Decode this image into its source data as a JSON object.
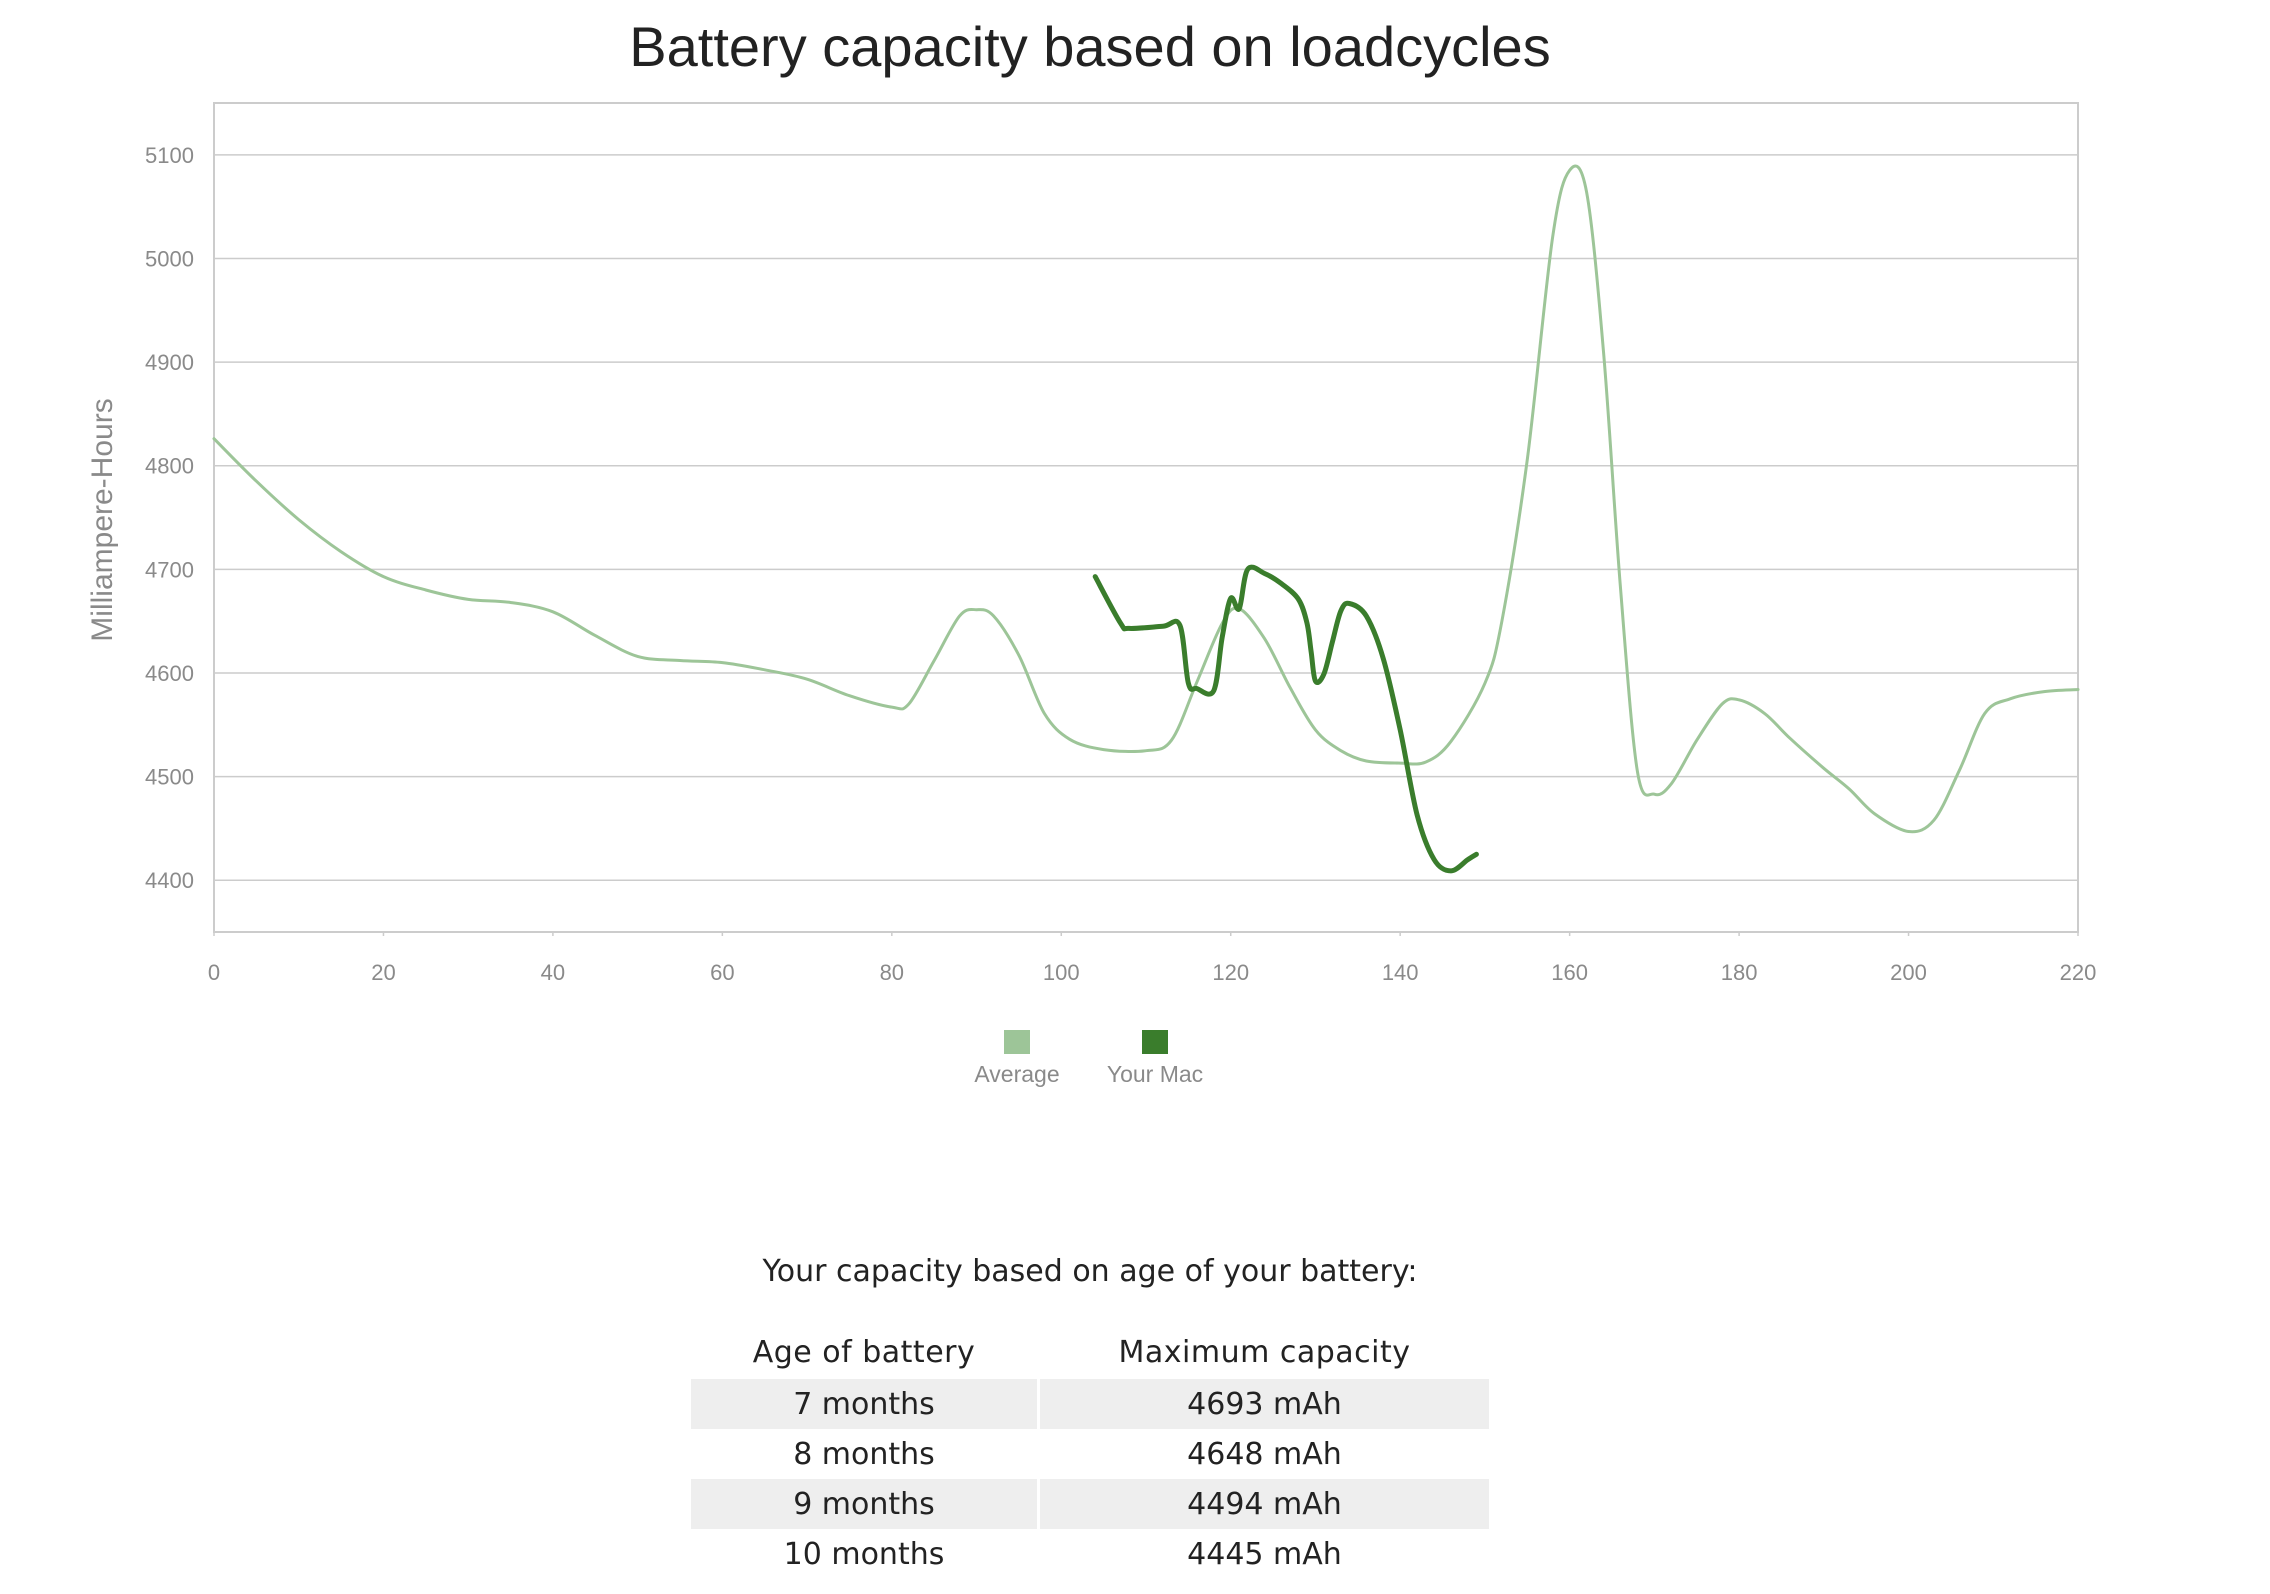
{
  "chart_data": {
    "type": "line",
    "title": "Battery capacity based on loadcycles",
    "ylabel": "Milliampere-Hours",
    "xlabel": "",
    "xlim": [
      0,
      220
    ],
    "ylim": [
      4350,
      5150
    ],
    "x_ticks": [
      0,
      20,
      40,
      60,
      80,
      100,
      120,
      140,
      160,
      180,
      200,
      220
    ],
    "y_ticks": [
      4400,
      4500,
      4600,
      4700,
      4800,
      4900,
      5000,
      5100
    ],
    "grid": true,
    "legend_position": "bottom",
    "series": [
      {
        "name": "Average",
        "color": "#9dc598",
        "points": [
          [
            0,
            4826
          ],
          [
            5,
            4785
          ],
          [
            10,
            4748
          ],
          [
            15,
            4717
          ],
          [
            20,
            4693
          ],
          [
            25,
            4680
          ],
          [
            30,
            4671
          ],
          [
            35,
            4668
          ],
          [
            40,
            4659
          ],
          [
            45,
            4636
          ],
          [
            50,
            4616
          ],
          [
            55,
            4612
          ],
          [
            60,
            4610
          ],
          [
            65,
            4603
          ],
          [
            70,
            4594
          ],
          [
            75,
            4578
          ],
          [
            80,
            4567
          ],
          [
            82,
            4570
          ],
          [
            85,
            4612
          ],
          [
            88,
            4655
          ],
          [
            90,
            4661
          ],
          [
            92,
            4655
          ],
          [
            95,
            4617
          ],
          [
            98,
            4561
          ],
          [
            101,
            4536
          ],
          [
            105,
            4526
          ],
          [
            110,
            4525
          ],
          [
            113,
            4535
          ],
          [
            116,
            4591
          ],
          [
            119,
            4648
          ],
          [
            121,
            4662
          ],
          [
            124,
            4633
          ],
          [
            127,
            4586
          ],
          [
            130,
            4545
          ],
          [
            133,
            4525
          ],
          [
            136,
            4515
          ],
          [
            140,
            4513
          ],
          [
            143,
            4514
          ],
          [
            146,
            4534
          ],
          [
            150,
            4590
          ],
          [
            152,
            4650
          ],
          [
            155,
            4806
          ],
          [
            158,
            5021
          ],
          [
            160,
            5085
          ],
          [
            162,
            5064
          ],
          [
            164,
            4910
          ],
          [
            166,
            4682
          ],
          [
            168,
            4505
          ],
          [
            170,
            4483
          ],
          [
            172,
            4493
          ],
          [
            175,
            4535
          ],
          [
            178,
            4570
          ],
          [
            180,
            4574
          ],
          [
            183,
            4561
          ],
          [
            186,
            4537
          ],
          [
            190,
            4508
          ],
          [
            193,
            4488
          ],
          [
            196,
            4464
          ],
          [
            200,
            4447
          ],
          [
            203,
            4458
          ],
          [
            206,
            4506
          ],
          [
            209,
            4561
          ],
          [
            212,
            4575
          ],
          [
            216,
            4582
          ],
          [
            220,
            4584
          ]
        ]
      },
      {
        "name": "Your Mac",
        "color": "#3a7d2c",
        "points": [
          [
            104,
            4693
          ],
          [
            107,
            4648
          ],
          [
            108,
            4643
          ],
          [
            112,
            4645
          ],
          [
            114,
            4646
          ],
          [
            115,
            4590
          ],
          [
            116,
            4585
          ],
          [
            118,
            4583
          ],
          [
            119,
            4635
          ],
          [
            120,
            4672
          ],
          [
            121,
            4662
          ],
          [
            122,
            4700
          ],
          [
            124,
            4696
          ],
          [
            126,
            4686
          ],
          [
            128,
            4671
          ],
          [
            129,
            4648
          ],
          [
            129.5,
            4620
          ],
          [
            130,
            4592
          ],
          [
            131,
            4599
          ],
          [
            132,
            4630
          ],
          [
            133,
            4660
          ],
          [
            134,
            4667
          ],
          [
            136,
            4655
          ],
          [
            138,
            4614
          ],
          [
            140,
            4545
          ],
          [
            142,
            4463
          ],
          [
            144,
            4420
          ],
          [
            146,
            4409
          ],
          [
            148,
            4420
          ],
          [
            149,
            4425
          ]
        ]
      }
    ]
  },
  "table": {
    "caption": "Your capacity based on age of your battery:",
    "headers": [
      "Age of battery",
      "Maximum capacity"
    ],
    "rows": [
      [
        "7 months",
        "4693 mAh"
      ],
      [
        "8 months",
        "4648 mAh"
      ],
      [
        "9 months",
        "4494 mAh"
      ],
      [
        "10 months",
        "4445 mAh"
      ]
    ]
  }
}
